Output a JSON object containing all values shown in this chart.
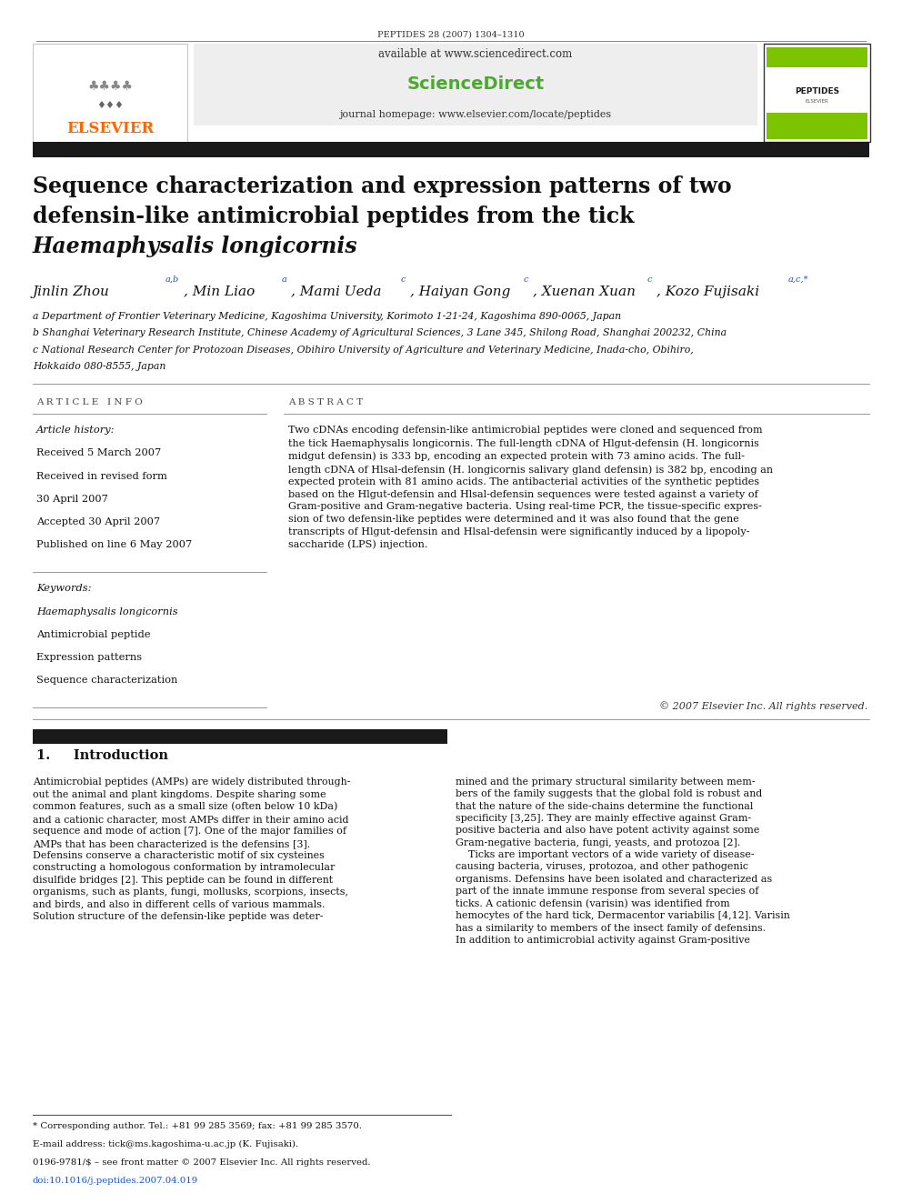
{
  "journal_header": "PEPTIDES 28 (2007) 1304–1310",
  "available_text": "available at www.sciencedirect.com",
  "journal_homepage": "journal homepage: www.elsevier.com/locate/peptides",
  "elsevier_color": "#FF6600",
  "green_color": "#66CC00",
  "title_line1": "Sequence characterization and expression patterns of two",
  "title_line2": "defensin-like antimicrobial peptides from the tick",
  "title_line3": "Haemaphysalis longicornis",
  "affil_a": "a Department of Frontier Veterinary Medicine, Kagoshima University, Korimoto 1-21-24, Kagoshima 890-0065, Japan",
  "affil_b": "b Shanghai Veterinary Research Institute, Chinese Academy of Agricultural Sciences, 3 Lane 345, Shilong Road, Shanghai 200232, China",
  "affil_c1": "c National Research Center for Protozoan Diseases, Obihiro University of Agriculture and Veterinary Medicine, Inada-cho, Obihiro,",
  "affil_c2": "Hokkaido 080-8555, Japan",
  "article_info_header": "A R T I C L E   I N F O",
  "abstract_header": "A B S T R A C T",
  "history_label": "Article history:",
  "received": "Received 5 March 2007",
  "revised": "Received in revised form",
  "revised2": "30 April 2007",
  "accepted": "Accepted 30 April 2007",
  "published": "Published on line 6 May 2007",
  "keywords_label": "Keywords:",
  "kw1": "Haemaphysalis longicornis",
  "kw2": "Antimicrobial peptide",
  "kw3": "Expression patterns",
  "kw4": "Sequence characterization",
  "abstract_text": "Two cDNAs encoding defensin-like antimicrobial peptides were cloned and sequenced from\nthe tick Haemaphysalis longicornis. The full-length cDNA of Hlgut-defensin (H. longicornis\nmidgut defensin) is 333 bp, encoding an expected protein with 73 amino acids. The full-\nlength cDNA of Hlsal-defensin (H. longicornis salivary gland defensin) is 382 bp, encoding an\nexpected protein with 81 amino acids. The antibacterial activities of the synthetic peptides\nbased on the Hlgut-defensin and Hlsal-defensin sequences were tested against a variety of\nGram-positive and Gram-negative bacteria. Using real-time PCR, the tissue-specific expres-\nsion of two defensin-like peptides were determined and it was also found that the gene\ntranscripts of Hlgut-defensin and Hlsal-defensin were significantly induced by a lipopoly-\nsaccharide (LPS) injection.",
  "copyright": "© 2007 Elsevier Inc. All rights reserved.",
  "intro_header": "1.     Introduction",
  "intro_col1": "Antimicrobial peptides (AMPs) are widely distributed through-\nout the animal and plant kingdoms. Despite sharing some\ncommon features, such as a small size (often below 10 kDa)\nand a cationic character, most AMPs differ in their amino acid\nsequence and mode of action [7]. One of the major families of\nAMPs that has been characterized is the defensins [3].\nDefensins conserve a characteristic motif of six cysteines\nconstructing a homologous conformation by intramolecular\ndisulfide bridges [2]. This peptide can be found in different\norganisms, such as plants, fungi, mollusks, scorpions, insects,\nand birds, and also in different cells of various mammals.\nSolution structure of the defensin-like peptide was deter-",
  "intro_col2": "mined and the primary structural similarity between mem-\nbers of the family suggests that the global fold is robust and\nthat the nature of the side-chains determine the functional\nspecificity [3,25]. They are mainly effective against Gram-\npositive bacteria and also have potent activity against some\nGram-negative bacteria, fungi, yeasts, and protozoa [2].\n    Ticks are important vectors of a wide variety of disease-\ncausing bacteria, viruses, protozoa, and other pathogenic\norganisms. Defensins have been isolated and characterized as\npart of the innate immune response from several species of\nticks. A cationic defensin (varisin) was identified from\nhemocytes of the hard tick, Dermacentor variabilis [4,12]. Varisin\nhas a similarity to members of the insect family of defensins.\nIn addition to antimicrobial activity against Gram-positive",
  "footnote1": "* Corresponding author. Tel.: +81 99 285 3569; fax: +81 99 285 3570.",
  "footnote2": "E-mail address: tick@ms.kagoshima-u.ac.jp (K. Fujisaki).",
  "footnote3": "0196-9781/$ – see front matter © 2007 Elsevier Inc. All rights reserved.",
  "footnote4": "doi:10.1016/j.peptides.2007.04.019",
  "bg_color": "#ffffff",
  "header_bg": "#f0f0f0",
  "dark_bar_color": "#1a1a1a",
  "peptides_journal_green": "#7dc400"
}
